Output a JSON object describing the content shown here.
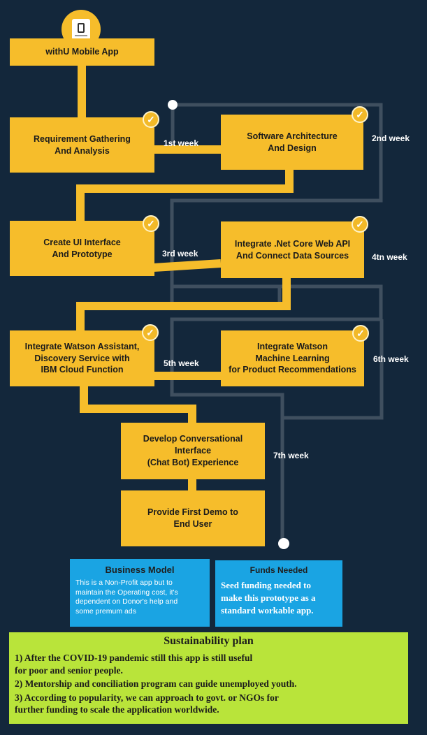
{
  "app": {
    "name": "withU Mobile App",
    "icon": "smartphone-icon"
  },
  "steps": [
    {
      "id": "requirements",
      "label": "Requirement Gathering\nAnd Analysis",
      "completed": true
    },
    {
      "id": "architecture",
      "label": "Software Architecture\nAnd Design",
      "completed": true
    },
    {
      "id": "ui",
      "label": "Create UI Interface\nAnd Prototype",
      "completed": true
    },
    {
      "id": "webapi",
      "label": "Integrate .Net Core Web API\nAnd Connect Data Sources",
      "completed": true
    },
    {
      "id": "watson-assistant",
      "label": "Integrate Watson Assistant,\nDiscovery Service with\nIBM Cloud Function",
      "completed": true
    },
    {
      "id": "watson-ml",
      "label": "Integrate Watson\nMachine Learning\nfor Product Recommendations",
      "completed": true
    },
    {
      "id": "chatbot",
      "label": "Develop Conversational Interface\n(Chat Bot) Experience",
      "completed": false
    },
    {
      "id": "demo",
      "label": "Provide First Demo to\nEnd User",
      "completed": false
    }
  ],
  "weeks": [
    "1st week",
    "2nd week",
    "3rd week",
    "4tn week",
    "5th week",
    "6th week",
    "7th week"
  ],
  "check_icon": "checkmark-icon",
  "business_model": {
    "title": "Business Model",
    "text": "This is a Non-Profit app but to\nmaintain the Operating cost, it's\ndependent on Donor's help and\nsome premum ads"
  },
  "funds_needed": {
    "title": "Funds Needed",
    "text": "Seed funding needed to\nmake this prototype as a\nstandard workable app."
  },
  "sustainability": {
    "title": "Sustainability plan",
    "items": [
      "1) After the COVID-19 pandemic still this app is still useful\n     for poor and senior people.",
      "2) Mentorship and conciliation program can guide unemployed youth.",
      "3) According to popularity, we can approach to govt. or NGOs for\n    further funding to scale the application worldwide."
    ]
  },
  "colors": {
    "background": "#13273b",
    "box": "#f6bd2b",
    "connector": "#f6bd2b",
    "timeline": "#3f4f5f",
    "panel_blue": "#1aa4e3",
    "panel_green": "#b9e43a"
  }
}
